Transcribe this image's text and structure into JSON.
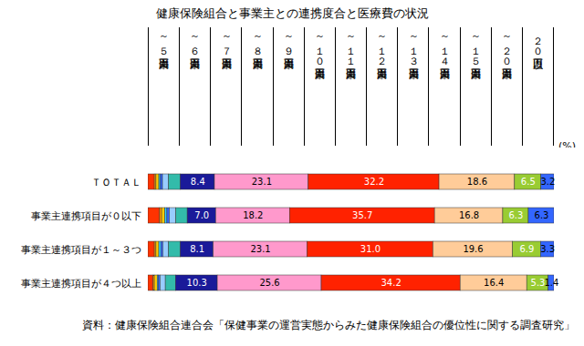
{
  "chart_data": {
    "type": "bar",
    "orientation": "horizontal",
    "stacked": true,
    "data_labels": true,
    "tick_labels": "y",
    "title": "健康保険組合と事業主との連携度合と医療費の状況",
    "xlabel": "(%)",
    "caption": "資料：健康保険組合連合会「保健事業の運営実態からみた健康保険組合の優位性に関する調査研究」",
    "xlim": [
      0,
      100
    ],
    "categories": [
      "ＴＯＴＡＬ",
      "事業主連携項目が０以下",
      "事業主連携項目が１～３つ",
      "事業主連携項目が４つ以上"
    ],
    "series": [
      {
        "name": "～５万円未満",
        "color": "#ff3300",
        "values": [
          1.6,
          2.9,
          1.6,
          1.3
        ],
        "value_labels": [
          null,
          null,
          null,
          null
        ]
      },
      {
        "name": "～６万円未満",
        "color": "#ff9900",
        "values": [
          0.4,
          0.5,
          0.4,
          0.3
        ],
        "value_labels": [
          null,
          null,
          null,
          null
        ]
      },
      {
        "name": "～７万円未満",
        "color": "#ffcc00",
        "values": [
          0.7,
          0.8,
          0.7,
          0.7
        ],
        "value_labels": [
          null,
          null,
          null,
          null
        ]
      },
      {
        "name": "～８万円未満",
        "color": "#33ccff",
        "values": [
          0.4,
          0.5,
          0.5,
          0.3
        ],
        "value_labels": [
          null,
          null,
          null,
          null
        ]
      },
      {
        "name": "～９万円未満",
        "color": "#3366ff",
        "values": [
          0.5,
          0.6,
          0.5,
          0.4
        ],
        "value_labels": [
          null,
          null,
          null,
          null
        ]
      },
      {
        "name": "～１０万円未満",
        "color": "#99ccff",
        "values": [
          1.5,
          1.6,
          1.4,
          1.3
        ],
        "value_labels": [
          null,
          null,
          null,
          null
        ]
      },
      {
        "name": "～１１万円未満",
        "color": "#33bbaa",
        "values": [
          2.9,
          2.8,
          2.9,
          2.5
        ],
        "value_labels": [
          null,
          null,
          null,
          null
        ]
      },
      {
        "name": "～１２万円未満",
        "color": "#1a1a99",
        "values": [
          8.4,
          7.0,
          8.1,
          10.3
        ],
        "value_labels": [
          "8.4",
          "7.0",
          "8.1",
          "10.3"
        ]
      },
      {
        "name": "～１３万円未満",
        "color": "#ff99cc",
        "values": [
          23.1,
          18.2,
          23.1,
          25.6
        ],
        "value_labels": [
          "23.1",
          "18.2",
          "23.1",
          "25.6"
        ]
      },
      {
        "name": "～１４万円未満",
        "color": "#ff2200",
        "values": [
          32.2,
          35.7,
          31.0,
          34.2
        ],
        "value_labels": [
          "32.2",
          "35.7",
          "31.0",
          "34.2"
        ]
      },
      {
        "name": "～１５万円未満",
        "color": "#ffcc99",
        "values": [
          18.6,
          16.8,
          19.6,
          16.4
        ],
        "value_labels": [
          "18.6",
          "16.8",
          "19.6",
          "16.4"
        ]
      },
      {
        "name": "～２０万円未満",
        "color": "#99cc33",
        "values": [
          6.5,
          6.3,
          6.9,
          5.3
        ],
        "value_labels": [
          "6.5",
          "6.3",
          "6.9",
          "5.3"
        ]
      },
      {
        "name": "２０万円以上",
        "color": "#3366ff",
        "values": [
          3.2,
          6.3,
          3.3,
          1.4
        ],
        "value_labels": [
          "3.2",
          "6.3",
          "3.3",
          "1.4"
        ]
      }
    ]
  }
}
